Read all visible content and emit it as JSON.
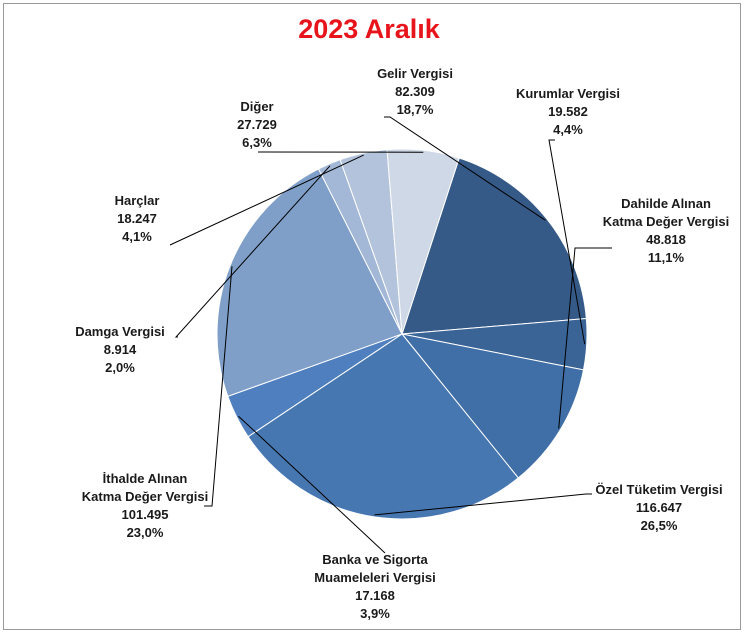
{
  "chart_data": {
    "type": "pie",
    "title": "2023 Aralık",
    "slices": [
      {
        "name": "Gelir Vergisi",
        "name_lines": [
          "Gelir Vergisi"
        ],
        "value": 82309,
        "value_label": "82.309",
        "percent_label": "18,7%",
        "percent": 18.7,
        "color": "#355a87"
      },
      {
        "name": "Kurumlar Vergisi",
        "name_lines": [
          "Kurumlar Vergisi"
        ],
        "value": 19582,
        "value_label": "19.582",
        "percent_label": "4,4%",
        "percent": 4.4,
        "color": "#3a6396"
      },
      {
        "name": "Dahilde Alınan Katma Değer Vergisi",
        "name_lines": [
          "Dahilde Alınan",
          "Katma Değer Vergisi"
        ],
        "value": 48818,
        "value_label": "48.818",
        "percent_label": "11,1%",
        "percent": 11.1,
        "color": "#406ea6"
      },
      {
        "name": "Özel Tüketim Vergisi",
        "name_lines": [
          "Özel Tüketim Vergisi"
        ],
        "value": 116647,
        "value_label": "116.647",
        "percent_label": "26,5%",
        "percent": 26.5,
        "color": "#4777b1"
      },
      {
        "name": "Banka ve Sigorta Muameleleri Vergisi",
        "name_lines": [
          "Banka ve Sigorta",
          "Muameleleri Vergisi"
        ],
        "value": 17168,
        "value_label": "17.168",
        "percent_label": "3,9%",
        "percent": 3.9,
        "color": "#4f7fbe"
      },
      {
        "name": "İthalde Alınan Katma Değer Vergisi",
        "name_lines": [
          "İthalde Alınan",
          "Katma Değer Vergisi"
        ],
        "value": 101495,
        "value_label": "101.495",
        "percent_label": "23,0%",
        "percent": 23.0,
        "color": "#7f9fc9"
      },
      {
        "name": "Damga Vergisi",
        "name_lines": [
          "Damga Vergisi"
        ],
        "value": 8914,
        "value_label": "8.914",
        "percent_label": "2,0%",
        "percent": 2.0,
        "color": "#a3b7d6"
      },
      {
        "name": "Harçlar",
        "name_lines": [
          "Harçlar"
        ],
        "value": 18247,
        "value_label": "18.247",
        "percent_label": "4,1%",
        "percent": 4.1,
        "color": "#b3c3dc"
      },
      {
        "name": "Diğer",
        "name_lines": [
          "Diğer"
        ],
        "value": 27729,
        "value_label": "27.729",
        "percent_label": "6,3%",
        "percent": 6.3,
        "color": "#cfd8e6"
      }
    ],
    "legend": "none",
    "label_style": "callout lines with name, value and percent"
  }
}
